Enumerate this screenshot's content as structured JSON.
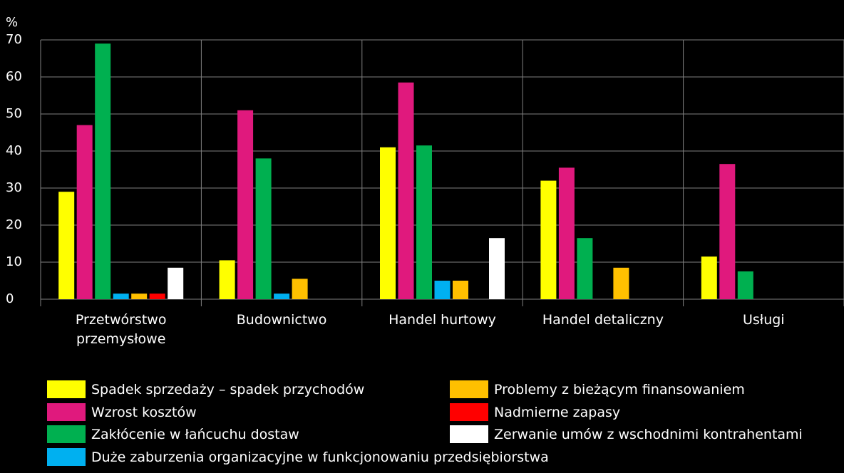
{
  "chart_data": {
    "type": "bar",
    "y_label": "%",
    "categories": [
      "Przetwórstwo przemysłowe",
      "Budownictwo",
      "Handel hurtowy",
      "Handel detaliczny",
      "Usługi"
    ],
    "series": [
      {
        "name": "Spadek sprzedaży – spadek przychodów",
        "color": "#ffff00",
        "values": [
          29,
          10.5,
          41,
          32,
          11.5
        ]
      },
      {
        "name": "Wzrost kosztów",
        "color": "#e0197d",
        "values": [
          47,
          51,
          58.5,
          35.5,
          36.5
        ]
      },
      {
        "name": "Zakłócenie w łańcuchu dostaw",
        "color": "#00b050",
        "values": [
          69,
          38,
          41.5,
          16.5,
          7.5
        ]
      },
      {
        "name": "Duże zaburzenia organizacyjne w funkcjonowaniu przedsiębiorstwa",
        "color": "#00b0f0",
        "values": [
          1.5,
          1.5,
          5,
          null,
          null
        ]
      },
      {
        "name": "Problemy z bieżącym finansowaniem",
        "color": "#ffc000",
        "values": [
          1.5,
          5.5,
          5,
          8.5,
          null
        ]
      },
      {
        "name": "Nadmierne zapasy",
        "color": "#ff0000",
        "values": [
          1.5,
          null,
          null,
          null,
          null
        ]
      },
      {
        "name": "Zerwanie umów z wschodnimi kontrahentami",
        "color": "#ffffff",
        "values": [
          8.5,
          null,
          16.5,
          null,
          null
        ]
      }
    ],
    "ylim": [
      0,
      70
    ],
    "yticks": [
      0,
      10,
      20,
      30,
      40,
      50,
      60,
      70
    ],
    "grid": true
  }
}
